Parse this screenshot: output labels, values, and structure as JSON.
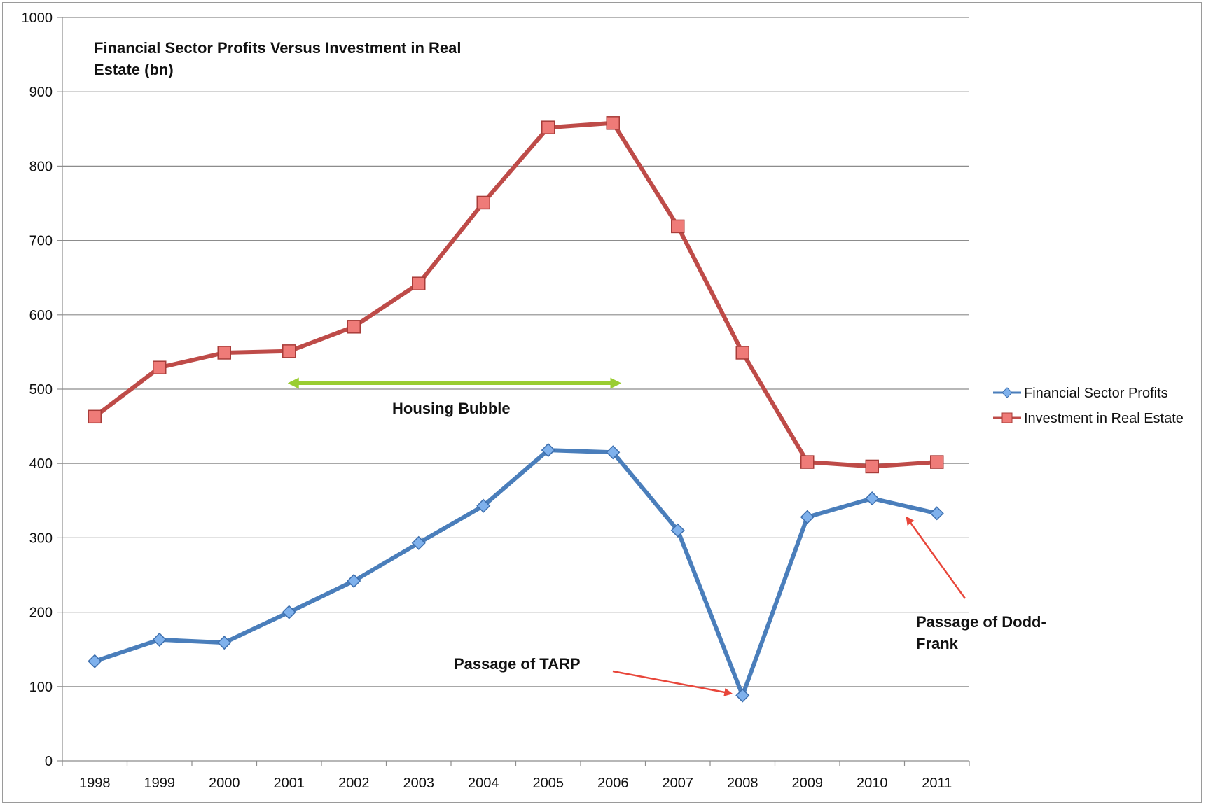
{
  "chart_data": {
    "type": "line",
    "title_lines": [
      "Financial Sector Profits Versus Investment in Real",
      "Estate (bn)"
    ],
    "xlabel": "",
    "ylabel": "",
    "categories": [
      "1998",
      "1999",
      "2000",
      "2001",
      "2002",
      "2003",
      "2004",
      "2005",
      "2006",
      "2007",
      "2008",
      "2009",
      "2010",
      "2011"
    ],
    "yticks": [
      "0",
      "100",
      "200",
      "300",
      "400",
      "500",
      "600",
      "700",
      "800",
      "900",
      "1000"
    ],
    "ylim": [
      0,
      1000
    ],
    "grid": true,
    "legend_position": "right",
    "series": [
      {
        "name": "Financial Sector Profits",
        "color": "#4a7ebb",
        "marker": "diamond",
        "values": [
          134,
          163,
          159,
          200,
          242,
          293,
          343,
          418,
          415,
          310,
          88,
          328,
          353,
          333
        ]
      },
      {
        "name": "Investment in Real Estate",
        "color": "#be4b48",
        "marker": "square",
        "values": [
          463,
          529,
          549,
          551,
          584,
          642,
          751,
          852,
          858,
          719,
          549,
          402,
          396,
          402
        ]
      }
    ],
    "annotations": [
      {
        "id": "housing-bubble",
        "lines": [
          "Housing Bubble"
        ],
        "color": "#9acd32",
        "arrow": "double",
        "from_year": "2001",
        "to_year": "2006",
        "at_value": 508
      },
      {
        "id": "tarp",
        "lines": [
          "Passage of TARP"
        ],
        "color": "#e8463a",
        "arrow": "single",
        "points_to": "2008"
      },
      {
        "id": "dodd-frank",
        "lines": [
          "Passage of Dodd-",
          "Frank"
        ],
        "color": "#e8463a",
        "arrow": "single",
        "points_to": "2010"
      }
    ]
  }
}
